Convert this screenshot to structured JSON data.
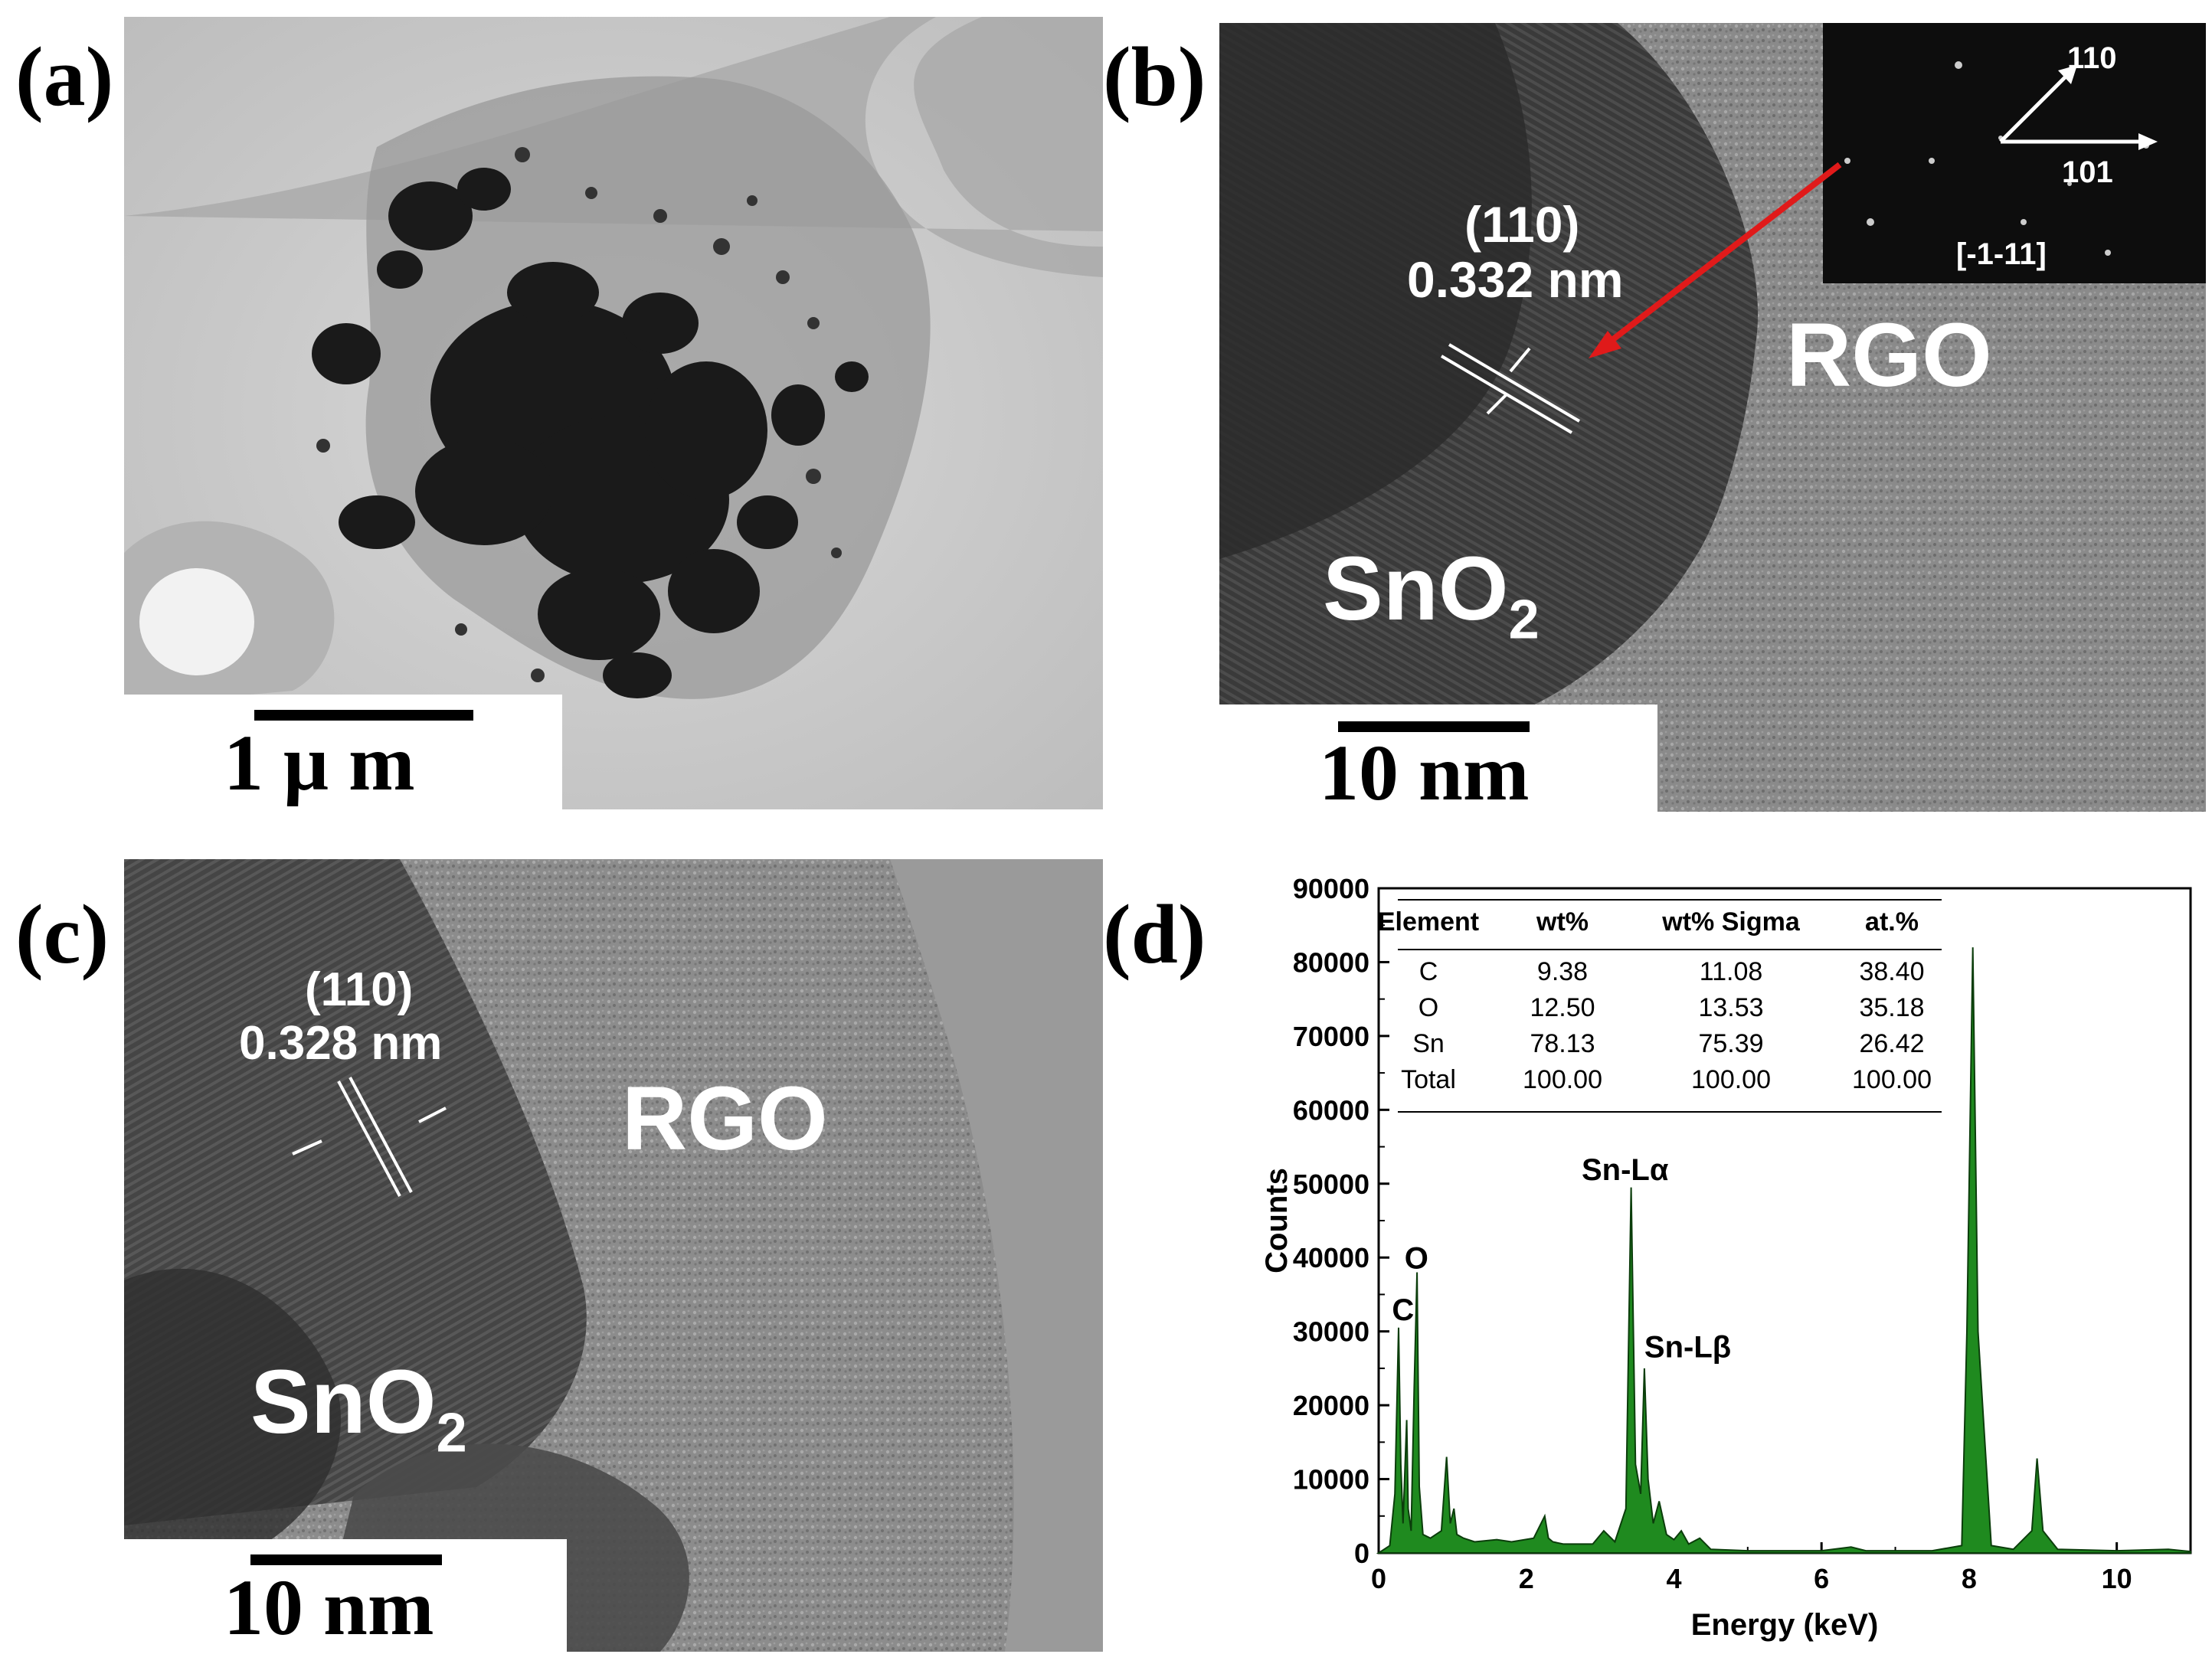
{
  "panels": {
    "a": {
      "label": "(a)",
      "scale": "1  μ m"
    },
    "b": {
      "label": "(b)",
      "scale": "10 nm",
      "plane": "(110)",
      "dspacing": "0.332 nm",
      "rgo": "RGO",
      "sno2": "SnO",
      "sno2_sub": "2",
      "fft": {
        "l110": "110",
        "l101": "101",
        "zone": "[-1-11]"
      }
    },
    "c": {
      "label": "(c)",
      "scale": "10 nm",
      "plane": "(110)",
      "dspacing": "0.328 nm",
      "rgo": "RGO",
      "sno2": "SnO",
      "sno2_sub": "2"
    },
    "d": {
      "label": "(d)"
    }
  },
  "colors": {
    "spectrum_fill": "#1f8a1f",
    "spectrum_line": "#0b3d0b",
    "arrow": "#e01a1a"
  },
  "chart_data": {
    "type": "area",
    "xlabel": "Energy (keV)",
    "ylabel": "Counts",
    "xlim": [
      0,
      11
    ],
    "ylim": [
      0,
      90000
    ],
    "xticks": [
      0,
      2,
      4,
      6,
      8,
      10
    ],
    "yticks": [
      0,
      10000,
      20000,
      30000,
      40000,
      50000,
      60000,
      70000,
      80000,
      90000
    ],
    "x": [
      0,
      0.15,
      0.22,
      0.27,
      0.3,
      0.33,
      0.38,
      0.4,
      0.44,
      0.48,
      0.52,
      0.55,
      0.6,
      0.7,
      0.85,
      0.92,
      0.97,
      1.02,
      1.06,
      1.15,
      1.3,
      1.6,
      1.8,
      2.1,
      2.25,
      2.3,
      2.36,
      2.5,
      2.9,
      3.05,
      3.2,
      3.35,
      3.42,
      3.48,
      3.55,
      3.6,
      3.65,
      3.72,
      3.8,
      3.9,
      4.0,
      4.1,
      4.2,
      4.35,
      4.5,
      5.0,
      6.0,
      6.4,
      6.6,
      7.5,
      7.9,
      7.97,
      8.05,
      8.12,
      8.3,
      8.6,
      8.85,
      8.92,
      9.0,
      9.2,
      10.0,
      10.7,
      11.0
    ],
    "y": [
      0,
      1000,
      8000,
      30500,
      12000,
      4000,
      18000,
      6000,
      3000,
      22000,
      38000,
      9000,
      2500,
      2000,
      3000,
      13000,
      4000,
      6000,
      2500,
      2000,
      1500,
      1800,
      1500,
      2000,
      5000,
      2000,
      1500,
      1200,
      1200,
      3000,
      1500,
      6000,
      49500,
      12000,
      8000,
      25000,
      10000,
      4000,
      7000,
      2500,
      1800,
      3000,
      1200,
      2000,
      500,
      300,
      300,
      800,
      300,
      300,
      1000,
      30000,
      82000,
      30000,
      1000,
      500,
      3000,
      12800,
      3000,
      500,
      300,
      500,
      200
    ],
    "annotations": [
      "C",
      "O",
      "Sn-Lα",
      "Sn-Lβ"
    ],
    "table": {
      "headers": [
        "Element",
        "wt%",
        "wt% Sigma",
        "at.%"
      ],
      "rows": [
        [
          "C",
          "9.38",
          "11.08",
          "38.40"
        ],
        [
          "O",
          "12.50",
          "13.53",
          "35.18"
        ],
        [
          "Sn",
          "78.13",
          "75.39",
          "26.42"
        ],
        [
          "Total",
          "100.00",
          "100.00",
          "100.00"
        ]
      ]
    }
  }
}
